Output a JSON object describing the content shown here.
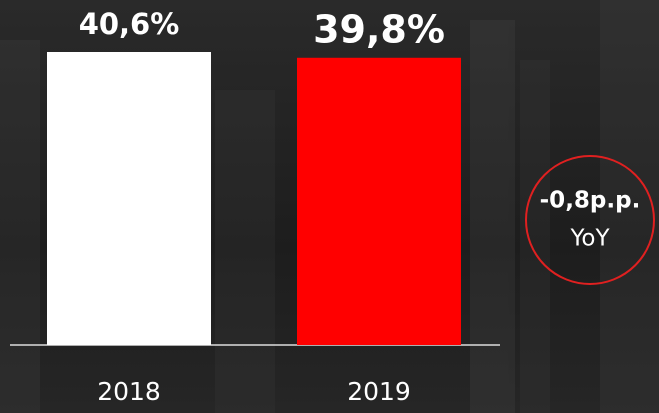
{
  "chart_data": {
    "type": "bar",
    "categories": [
      "2018",
      "2019"
    ],
    "values": [
      40.6,
      39.8
    ],
    "value_labels": [
      "40,6%",
      "39,8%"
    ],
    "colors": [
      "#ffffff",
      "#ff0000"
    ],
    "annotation": {
      "text": "-0,8p.p.",
      "subtext": "YoY"
    }
  }
}
